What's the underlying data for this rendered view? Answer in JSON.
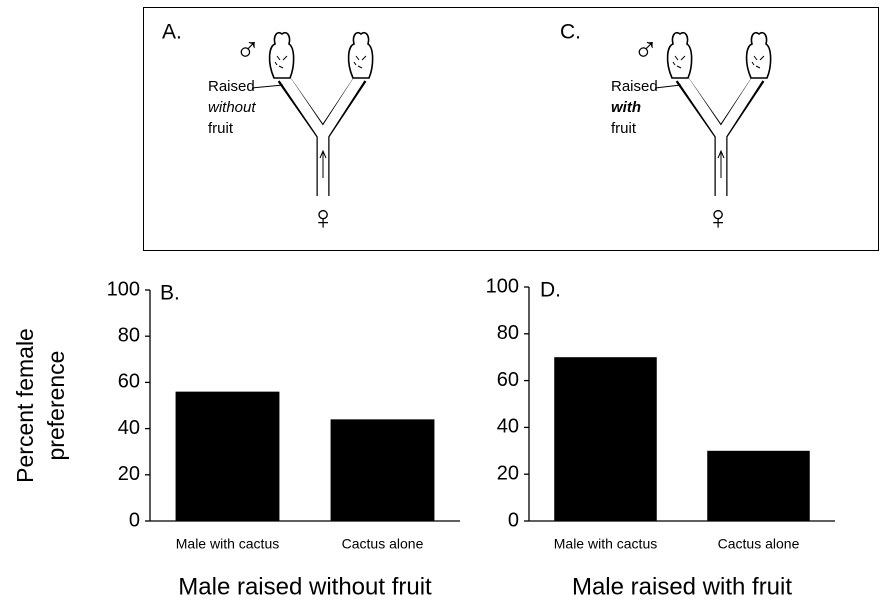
{
  "diagram_panels": [
    {
      "label": "A.",
      "male_symbol": "♂",
      "caption_lines": [
        "Raised",
        "without",
        "fruit"
      ],
      "female_symbol": "♀"
    },
    {
      "label": "C.",
      "male_symbol": "♂",
      "caption_lines": [
        "Raised",
        "with",
        "fruit"
      ],
      "female_symbol": "♀"
    }
  ],
  "chart_data": [
    {
      "type": "bar",
      "panel_label": "B.",
      "y_label": [
        "Percent female",
        "preference"
      ],
      "x_title": "Male raised without fruit",
      "categories": [
        "Male with cactus",
        "Cactus alone"
      ],
      "values": [
        56,
        44
      ],
      "color": "#000000",
      "ylim": [
        0,
        100
      ],
      "yticks": [
        0,
        20,
        40,
        60,
        80,
        100
      ]
    },
    {
      "type": "bar",
      "panel_label": "D.",
      "x_title": "Male raised with fruit",
      "categories": [
        "Male with cactus",
        "Cactus alone"
      ],
      "values": [
        70,
        30
      ],
      "color": "#000000",
      "ylim": [
        0,
        100
      ],
      "yticks": [
        0,
        20,
        40,
        60,
        80,
        100
      ]
    }
  ]
}
